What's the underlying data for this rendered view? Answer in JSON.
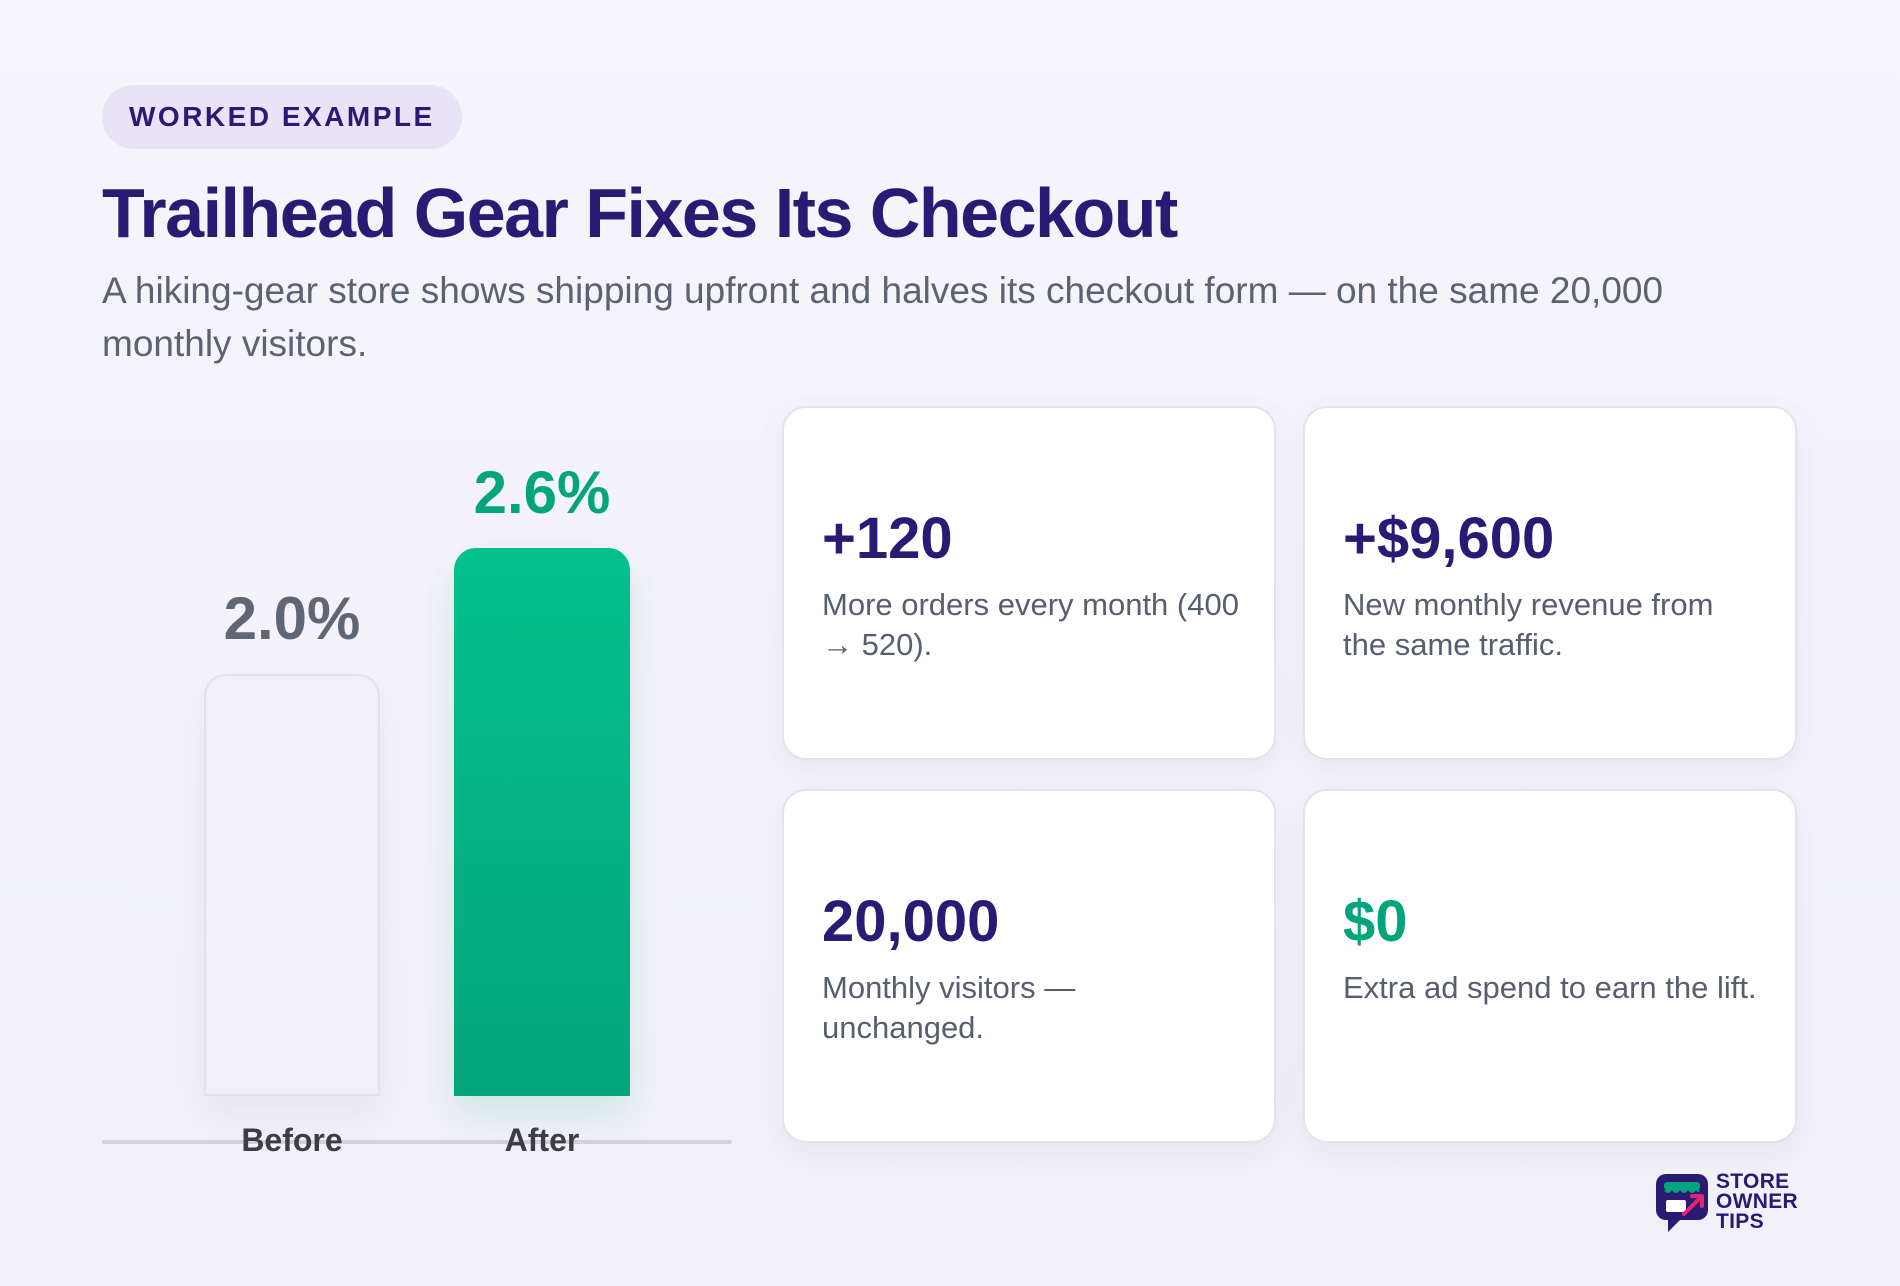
{
  "header": {
    "tag": "WORKED EXAMPLE",
    "title": "Trailhead Gear Fixes Its Checkout",
    "subtitle": "A hiking-gear store shows shipping upfront and halves its checkout form — on the same 20,000 monthly visitors."
  },
  "chart_data": {
    "type": "bar",
    "categories": [
      "Before",
      "After"
    ],
    "values": [
      2.0,
      2.6
    ],
    "value_labels": [
      "2.0%",
      "2.6%"
    ],
    "unit": "%",
    "colors": [
      "#f1f0f6",
      "#04a57c"
    ],
    "value_label_colors": [
      "#5f6777",
      "#04a57c"
    ],
    "ylim": [
      0,
      2.6
    ],
    "grid": false
  },
  "cards": [
    {
      "value": "+120",
      "description": "More orders every month (400 → 520).",
      "color": "#2a1a74"
    },
    {
      "value": "+$9,600",
      "description": "New monthly revenue from the same traffic.",
      "color": "#2a1a74"
    },
    {
      "value": "20,000",
      "description": "Monthly visitors — unchanged.",
      "color": "#2a1a74"
    },
    {
      "value": "$0",
      "description": "Extra ad spend to earn the lift.",
      "color": "#04a57c"
    }
  ],
  "logo": {
    "line1": "STORE",
    "line2": "OWNER",
    "line3": "TIPS"
  }
}
